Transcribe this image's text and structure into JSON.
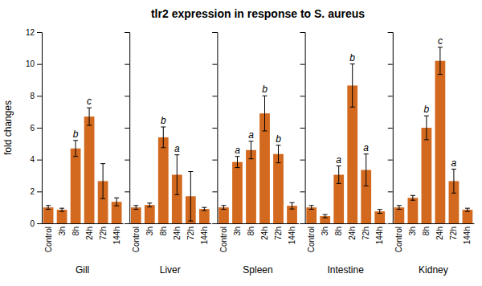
{
  "chart_data": [
    {
      "type": "bar",
      "title": "tlr2 expression in response to S. aureus",
      "ylabel": "fold changes",
      "xlabel": "Gill",
      "categories": [
        "Control",
        "3h",
        "8h",
        "24h",
        "72h",
        "144h"
      ],
      "values": [
        1.0,
        0.85,
        4.7,
        6.7,
        2.65,
        1.35
      ],
      "errors": [
        0.12,
        0.1,
        0.5,
        0.55,
        1.1,
        0.25
      ],
      "annotations": [
        null,
        null,
        "b",
        "c",
        null,
        null
      ],
      "color": "#D2691E",
      "ylim": [
        0,
        12
      ],
      "yticks": [
        0,
        2,
        4,
        6,
        8,
        10,
        12
      ]
    },
    {
      "type": "bar",
      "xlabel": "Liver",
      "categories": [
        "Control",
        "3h",
        "8h",
        "24h",
        "72h",
        "144h"
      ],
      "values": [
        1.0,
        1.15,
        5.4,
        3.05,
        1.7,
        0.9
      ],
      "errors": [
        0.12,
        0.12,
        0.65,
        1.25,
        1.55,
        0.1
      ],
      "annotations": [
        null,
        null,
        "b",
        "a",
        null,
        null
      ],
      "color": "#D2691E",
      "ylim": [
        0,
        12
      ],
      "yticks": [
        0,
        2,
        4,
        6,
        8,
        10,
        12
      ],
      "tick_labels": "x"
    },
    {
      "type": "bar",
      "xlabel": "Spleen",
      "categories": [
        "Control",
        "3h",
        "8h",
        "24h",
        "72h",
        "144h"
      ],
      "values": [
        1.0,
        3.85,
        4.6,
        6.9,
        4.35,
        1.1
      ],
      "errors": [
        0.12,
        0.35,
        0.55,
        1.1,
        0.55,
        0.2
      ],
      "annotations": [
        null,
        "a",
        "a",
        "b",
        "b",
        null
      ],
      "color": "#D2691E",
      "ylim": [
        0,
        12
      ],
      "yticks": [
        0,
        2,
        4,
        6,
        8,
        10,
        12
      ],
      "tick_labels": "x"
    },
    {
      "type": "bar",
      "xlabel": "Intestine",
      "categories": [
        "Control",
        "3h",
        "8h",
        "24h",
        "72h",
        "144h"
      ],
      "values": [
        1.0,
        0.45,
        3.05,
        8.65,
        3.35,
        0.75
      ],
      "errors": [
        0.12,
        0.1,
        0.55,
        1.35,
        1.0,
        0.12
      ],
      "annotations": [
        null,
        null,
        "a",
        "b",
        "a",
        null
      ],
      "color": "#D2691E",
      "ylim": [
        0,
        12
      ],
      "yticks": [
        0,
        2,
        4,
        6,
        8,
        10,
        12
      ],
      "tick_labels": "x"
    },
    {
      "type": "bar",
      "xlabel": "Kidney",
      "categories": [
        "Control",
        "3h",
        "8h",
        "24h",
        "72h",
        "144h"
      ],
      "values": [
        1.0,
        1.6,
        6.0,
        10.2,
        2.65,
        0.85
      ],
      "errors": [
        0.12,
        0.15,
        0.75,
        0.85,
        0.75,
        0.1
      ],
      "annotations": [
        null,
        null,
        "b",
        "c",
        "a",
        null
      ],
      "color": "#D2691E",
      "ylim": [
        0,
        12
      ],
      "yticks": [
        0,
        2,
        4,
        6,
        8,
        10,
        12
      ],
      "tick_labels": "x"
    }
  ]
}
